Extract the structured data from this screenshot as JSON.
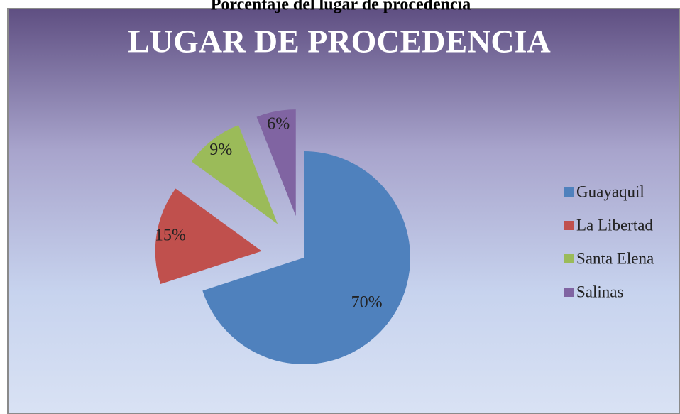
{
  "chart_data": {
    "type": "pie",
    "caption": "Porcentaje del lugar de procedencia",
    "title": "LUGAR DE PROCEDENCIA",
    "categories": [
      "Guayaquil",
      "La Libertad",
      "Santa Elena",
      "Salinas"
    ],
    "values": [
      70,
      15,
      9,
      6
    ],
    "value_labels": [
      "70%",
      "15%",
      "9%",
      "6%"
    ],
    "colors": [
      "#4f81bd",
      "#c0504d",
      "#9bbb59",
      "#8064a2"
    ],
    "legend": "right"
  }
}
